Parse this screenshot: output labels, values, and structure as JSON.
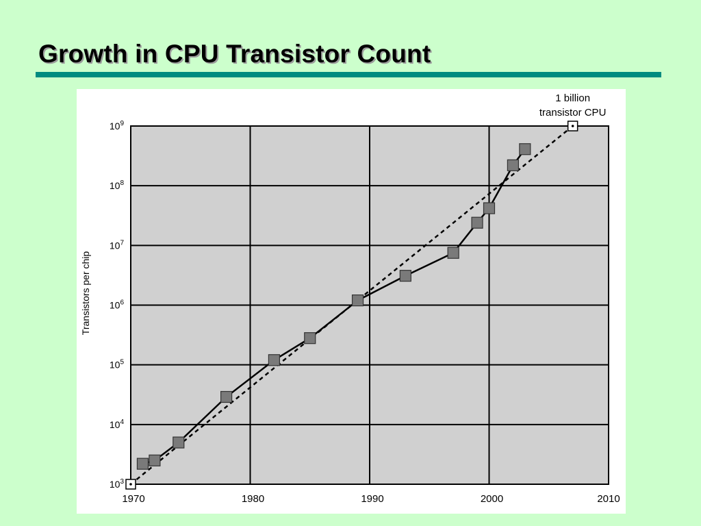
{
  "slide": {
    "title": "Growth in CPU Transistor Count"
  },
  "chart_data": {
    "type": "line",
    "title": "",
    "xlabel": "",
    "ylabel": "Transistors per chip",
    "xlim": [
      1970,
      2010
    ],
    "ylim": [
      1000,
      1000000000
    ],
    "y_scale": "log",
    "x_ticks": [
      "1970",
      "1980",
      "1990",
      "2000",
      "2010"
    ],
    "y_ticks": [
      {
        "base": "10",
        "exp": "3"
      },
      {
        "base": "10",
        "exp": "4"
      },
      {
        "base": "10",
        "exp": "5"
      },
      {
        "base": "10",
        "exp": "6"
      },
      {
        "base": "10",
        "exp": "7"
      },
      {
        "base": "10",
        "exp": "8"
      },
      {
        "base": "10",
        "exp": "9"
      }
    ],
    "grid": true,
    "series": [
      {
        "style": "solid-with-square-markers",
        "x": [
          1971,
          1972,
          1974,
          1978,
          1982,
          1985,
          1989,
          1993,
          1997,
          1999,
          2000,
          2002,
          2003
        ],
        "y": [
          2200,
          2500,
          5000,
          29000,
          120000,
          280000,
          1200000,
          3100000,
          7500000,
          24000000,
          42000000,
          220000000,
          410000000
        ]
      },
      {
        "style": "dashed-trend",
        "x": [
          1970,
          2007
        ],
        "y": [
          1000,
          1000000000
        ]
      }
    ],
    "annotations": [
      {
        "line1": "1 billion",
        "line2": "transistor CPU",
        "x": 2007,
        "y": 1000000000
      }
    ]
  }
}
